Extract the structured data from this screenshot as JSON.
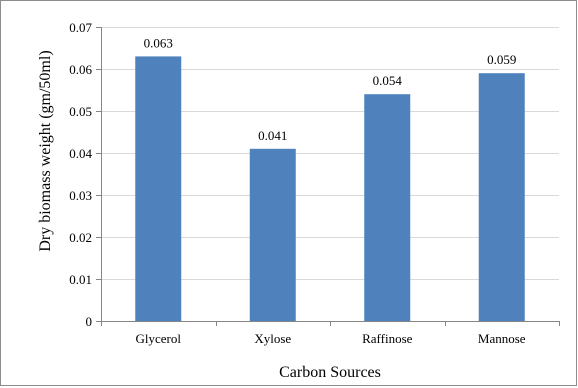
{
  "chart_data": {
    "type": "bar",
    "categories": [
      "Glycerol",
      "Xylose",
      "Raffinose",
      "Mannose"
    ],
    "values": [
      0.063,
      0.041,
      0.054,
      0.059
    ],
    "data_labels": [
      "0.063",
      "0.041",
      "0.054",
      "0.059"
    ],
    "title": "",
    "xlabel": "Carbon Sources",
    "ylabel": "Dry biomass weight (gm/50ml)",
    "ylim": [
      0,
      0.07
    ],
    "yticks": [
      0,
      0.01,
      0.02,
      0.03,
      0.04,
      0.05,
      0.06,
      0.07
    ],
    "ytick_labels": [
      "0",
      "0.01",
      "0.02",
      "0.03",
      "0.04",
      "0.05",
      "0.06",
      "0.07"
    ],
    "grid": true,
    "legend": "none",
    "bar_color": "#4f81bd",
    "grid_color": "#d9d9d9"
  }
}
